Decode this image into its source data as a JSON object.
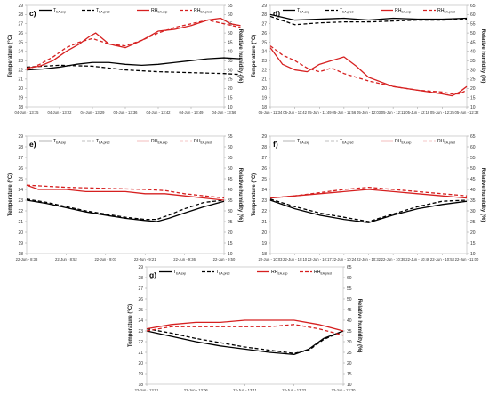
{
  "legend_template": {
    "exp_T": "T",
    "exp_T_sub": "EA,exp",
    "pred_T": "T",
    "pred_T_sub": "EA,pred",
    "exp_RH": "RH",
    "exp_RH_sub": "EA,exp",
    "pred_RH": "RH",
    "pred_RH_sub": "EA,pred"
  },
  "colors": {
    "temperature": "#000000",
    "humidity": "#d62020",
    "frame": "#c8c8c8"
  },
  "chart_data": [
    {
      "id": "c",
      "panel_label": "c)",
      "type": "line",
      "ylabel": "Temperature (°C)",
      "y2label": "Relative humidity (%)",
      "ylim": [
        18,
        29
      ],
      "yticks": [
        18,
        19,
        20,
        21,
        22,
        23,
        24,
        25,
        26,
        27,
        28,
        29
      ],
      "y2lim": [
        10,
        65
      ],
      "y2ticks": [
        10,
        15,
        20,
        25,
        30,
        35,
        40,
        45,
        50,
        55,
        60,
        65
      ],
      "xtick_labels": [
        "04-Jun - 13:15",
        "04-Jun - 13:22",
        "04-Jun - 13:29",
        "04-Jun - 13:36",
        "04-Jun - 13:42",
        "04-Jun - 13:49",
        "04-Jun - 13:56"
      ],
      "series": [
        {
          "name": "T_EA,exp",
          "axis": "left",
          "color": "#000000",
          "dash": false,
          "x": [
            0,
            0.5,
            1,
            1.5,
            2,
            2.5,
            3,
            3.5,
            4,
            4.5,
            5,
            5.5,
            6,
            6.5
          ],
          "values": [
            22.0,
            22.1,
            22.3,
            22.6,
            22.8,
            22.8,
            22.6,
            22.5,
            22.6,
            22.8,
            23.0,
            23.2,
            23.3,
            23.2
          ]
        },
        {
          "name": "T_EA,pred",
          "axis": "left",
          "color": "#000000",
          "dash": true,
          "x": [
            0,
            1,
            2,
            3,
            4,
            5,
            6,
            6.5
          ],
          "values": [
            22.3,
            22.5,
            22.4,
            22.0,
            21.8,
            21.7,
            21.6,
            21.5
          ]
        },
        {
          "name": "RH_EA,exp",
          "axis": "right",
          "color": "#d62020",
          "dash": false,
          "x": [
            0,
            0.4,
            0.8,
            1.2,
            1.6,
            1.9,
            2.1,
            2.5,
            3,
            3.5,
            4,
            4.5,
            5,
            5.5,
            5.9,
            6.2,
            6.5
          ],
          "values": [
            31,
            32,
            35,
            40,
            44,
            48,
            50,
            44,
            42,
            46,
            51,
            52,
            54,
            57,
            58,
            55,
            54
          ]
        },
        {
          "name": "RH_EA,pred",
          "axis": "right",
          "color": "#d62020",
          "dash": true,
          "x": [
            0,
            0.4,
            0.8,
            1.2,
            1.6,
            2,
            2.5,
            3,
            3.5,
            4,
            4.5,
            5,
            5.5,
            6,
            6.5
          ],
          "values": [
            30,
            33,
            37,
            42,
            45,
            47,
            44,
            43,
            46,
            50,
            53,
            55,
            57,
            55,
            53
          ]
        }
      ]
    },
    {
      "id": "d",
      "panel_label": "d)",
      "type": "line",
      "ylabel": "Temperature (°C)",
      "y2label": "Relative humidity (%)",
      "ylim": [
        18,
        29
      ],
      "yticks": [
        18,
        19,
        20,
        21,
        22,
        23,
        24,
        25,
        26,
        27,
        28,
        29
      ],
      "y2lim": [
        10,
        65
      ],
      "y2ticks": [
        10,
        15,
        20,
        25,
        30,
        35,
        40,
        45,
        50,
        55,
        60,
        65
      ],
      "xtick_labels": [
        "05-Jun - 11:34",
        "05-Jun - 11:42",
        "05-Jun - 11:49",
        "05-Jun - 11:56",
        "05-Jun - 12:03",
        "05-Jun - 12:11",
        "05-Jun - 12:18",
        "05-Jun - 12:25",
        "05-Jun - 12:32"
      ],
      "series": [
        {
          "name": "T_EA,exp",
          "axis": "left",
          "color": "#000000",
          "dash": false,
          "x": [
            0,
            1,
            2,
            3,
            4,
            5,
            6,
            7,
            8
          ],
          "values": [
            28.0,
            27.4,
            27.5,
            27.6,
            27.4,
            27.6,
            27.5,
            27.5,
            27.6
          ]
        },
        {
          "name": "T_EA,pred",
          "axis": "left",
          "color": "#000000",
          "dash": true,
          "x": [
            0,
            1,
            2,
            3,
            4,
            5,
            6,
            7,
            8
          ],
          "values": [
            27.8,
            26.9,
            27.1,
            27.2,
            27.2,
            27.3,
            27.4,
            27.4,
            27.5
          ]
        },
        {
          "name": "RH_EA,exp",
          "axis": "right",
          "color": "#d62020",
          "dash": false,
          "x": [
            0,
            0.5,
            1,
            1.5,
            2,
            2.5,
            3,
            3.5,
            4,
            5,
            6,
            7,
            7.4,
            7.7,
            8
          ],
          "values": [
            42,
            33,
            30,
            29,
            33,
            35,
            37,
            32,
            26,
            21,
            19,
            17,
            16,
            18,
            21
          ]
        },
        {
          "name": "RH_EA,pred",
          "axis": "right",
          "color": "#d62020",
          "dash": true,
          "x": [
            0,
            0.5,
            1,
            1.5,
            2,
            2.5,
            3,
            3.5,
            4,
            5,
            6,
            7,
            7.4,
            7.7,
            8
          ],
          "values": [
            43,
            38,
            35,
            31,
            29,
            31,
            28,
            26,
            24,
            21,
            19,
            18,
            17,
            17,
            19
          ]
        }
      ]
    },
    {
      "id": "e",
      "panel_label": "e)",
      "type": "line",
      "ylabel": "Temperature (°C)",
      "y2label": "Relative humidity (%)",
      "ylim": [
        18,
        29
      ],
      "yticks": [
        18,
        19,
        20,
        21,
        22,
        23,
        24,
        25,
        26,
        27,
        28,
        29
      ],
      "y2lim": [
        10,
        65
      ],
      "y2ticks": [
        10,
        15,
        20,
        25,
        30,
        35,
        40,
        45,
        50,
        55,
        60,
        65
      ],
      "xtick_labels": [
        "22-Jun - 8:38",
        "22-Jun - 8:52",
        "22-Jun - 9:07",
        "22-Jun - 9:21",
        "22-Jun - 9:36",
        "22-Jun - 9:50"
      ],
      "series": [
        {
          "name": "T_EA,exp",
          "axis": "left",
          "color": "#000000",
          "dash": false,
          "x": [
            0,
            0.5,
            1,
            1.5,
            2,
            2.5,
            3,
            3.3,
            3.6,
            4,
            4.5,
            5
          ],
          "values": [
            23.0,
            22.7,
            22.3,
            21.9,
            21.6,
            21.3,
            21.1,
            21.0,
            21.3,
            21.8,
            22.4,
            22.9
          ]
        },
        {
          "name": "T_EA,pred",
          "axis": "left",
          "color": "#000000",
          "dash": true,
          "x": [
            0,
            0.5,
            1,
            1.5,
            2,
            2.5,
            3,
            3.3,
            3.6,
            4,
            4.5,
            5
          ],
          "values": [
            23.1,
            22.8,
            22.4,
            22.0,
            21.7,
            21.4,
            21.2,
            21.2,
            21.6,
            22.2,
            22.8,
            23.0
          ]
        },
        {
          "name": "RH_EA,exp",
          "axis": "right",
          "color": "#d62020",
          "dash": false,
          "x": [
            0,
            0.3,
            0.6,
            1,
            1.5,
            2,
            2.5,
            3,
            3.5,
            4,
            4.5,
            5
          ],
          "values": [
            42,
            40,
            40,
            40,
            39,
            39,
            39,
            38,
            38,
            37,
            36,
            35
          ]
        },
        {
          "name": "RH_EA,pred",
          "axis": "right",
          "color": "#d62020",
          "dash": true,
          "x": [
            0,
            1,
            2,
            3,
            3.5,
            4,
            4.5,
            5
          ],
          "values": [
            42,
            41,
            40.5,
            40,
            39.5,
            38,
            37,
            36
          ]
        }
      ]
    },
    {
      "id": "f",
      "panel_label": "f)",
      "type": "line",
      "ylabel": "Temperature (°C)",
      "y2label": "Relative humidity (%)",
      "ylim": [
        18,
        29
      ],
      "yticks": [
        18,
        19,
        20,
        21,
        22,
        23,
        24,
        25,
        26,
        27,
        28,
        29
      ],
      "y2lim": [
        10,
        65
      ],
      "y2ticks": [
        10,
        15,
        20,
        25,
        30,
        35,
        40,
        45,
        50,
        55,
        60,
        65
      ],
      "xtick_labels": [
        "22-Jun - 10:03",
        "22-Jun - 10:10",
        "22-Jun - 10:17",
        "22-Jun - 10:24",
        "22-Jun - 10:32",
        "22-Jun - 10:39",
        "22-Jun - 10:46",
        "22-Jun - 10:53",
        "22-Jun - 11:00"
      ],
      "series": [
        {
          "name": "T_EA,exp",
          "axis": "left",
          "color": "#000000",
          "dash": false,
          "x": [
            0,
            1,
            2,
            3,
            4,
            5,
            6,
            7,
            8
          ],
          "values": [
            23.0,
            22.2,
            21.6,
            21.2,
            20.9,
            21.6,
            22.2,
            22.6,
            22.9
          ]
        },
        {
          "name": "T_EA,pred",
          "axis": "left",
          "color": "#000000",
          "dash": true,
          "x": [
            0,
            1,
            2,
            3,
            4,
            5,
            6,
            7,
            8
          ],
          "values": [
            23.1,
            22.4,
            21.8,
            21.4,
            21.0,
            21.7,
            22.4,
            22.9,
            23.0
          ]
        },
        {
          "name": "RH_EA,exp",
          "axis": "right",
          "color": "#d62020",
          "dash": false,
          "x": [
            0,
            1,
            2,
            3,
            4,
            5,
            6,
            7,
            8
          ],
          "values": [
            36,
            37,
            38,
            39,
            40,
            39,
            38,
            37,
            36
          ]
        },
        {
          "name": "RH_EA,pred",
          "axis": "right",
          "color": "#d62020",
          "dash": true,
          "x": [
            0,
            1,
            2,
            3,
            4,
            5,
            6,
            7,
            8
          ],
          "values": [
            36,
            37,
            38.5,
            40,
            41,
            40,
            39,
            38,
            37
          ]
        }
      ]
    },
    {
      "id": "g",
      "panel_label": "g)",
      "type": "line",
      "ylabel": "Temperature (°C)",
      "y2label": "Relative humidity (%)",
      "ylim": [
        18,
        29
      ],
      "yticks": [
        18,
        19,
        20,
        21,
        22,
        23,
        24,
        25,
        26,
        27,
        28,
        29
      ],
      "y2lim": [
        10,
        65
      ],
      "y2ticks": [
        10,
        15,
        20,
        25,
        30,
        35,
        40,
        45,
        50,
        55,
        60,
        65
      ],
      "xtick_labels": [
        "22-Jun - 13:01",
        "22-Jun - 13:06",
        "22-Jun - 13:11",
        "22-Jun - 13:22",
        "22-Jun - 13:30"
      ],
      "series": [
        {
          "name": "T_EA,exp",
          "axis": "left",
          "color": "#000000",
          "dash": false,
          "x": [
            0,
            0.5,
            1,
            1.5,
            2,
            2.5,
            3,
            3.3,
            3.6,
            4
          ],
          "values": [
            23.0,
            22.5,
            22.0,
            21.6,
            21.3,
            21.0,
            20.8,
            21.3,
            22.3,
            23.0
          ]
        },
        {
          "name": "T_EA,pred",
          "axis": "left",
          "color": "#000000",
          "dash": true,
          "x": [
            0,
            0.5,
            1,
            1.5,
            2,
            2.5,
            3,
            3.3,
            3.6,
            4
          ],
          "values": [
            23.2,
            22.8,
            22.3,
            21.9,
            21.5,
            21.2,
            20.9,
            21.2,
            22.2,
            23.0
          ]
        },
        {
          "name": "RH_EA,exp",
          "axis": "right",
          "color": "#d62020",
          "dash": false,
          "x": [
            0,
            0.5,
            1,
            1.5,
            2,
            2.5,
            3,
            3.5,
            4
          ],
          "values": [
            36,
            38,
            39,
            39,
            40,
            40,
            40,
            38,
            35
          ]
        },
        {
          "name": "RH_EA,pred",
          "axis": "right",
          "color": "#d62020",
          "dash": true,
          "x": [
            0,
            0.5,
            1,
            1.5,
            2,
            2.5,
            3,
            3.5,
            4
          ],
          "values": [
            35,
            37,
            37,
            37,
            37,
            37,
            38,
            36,
            33
          ]
        }
      ]
    }
  ]
}
